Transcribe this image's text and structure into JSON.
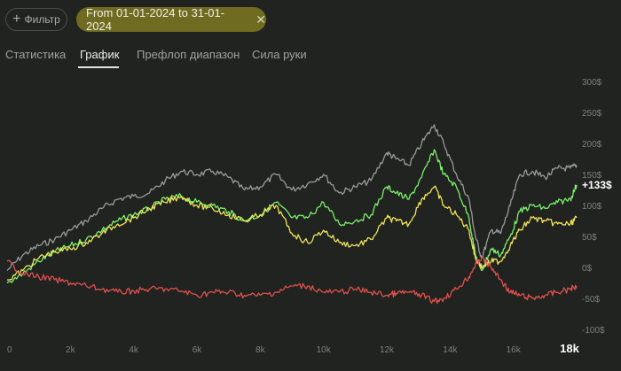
{
  "toolbar": {
    "filter_label": "Фильтр",
    "date_range_label": "From 01-01-2024 to 31-01-2024"
  },
  "tabs": [
    {
      "label": "Статистика",
      "active": false
    },
    {
      "label": "График",
      "active": true
    },
    {
      "label": "Префлоп диапазон",
      "active": false
    },
    {
      "label": "Сила руки",
      "active": false
    }
  ],
  "colors": {
    "background": "#202320",
    "chip": "#6f6b21",
    "gray_series": "#9a9a9a",
    "green_series": "#7cf06a",
    "yellow_series": "#f0e35a",
    "red_series": "#e0504c"
  },
  "chart_data": {
    "type": "line",
    "x_ticks": [
      "0",
      "2k",
      "4k",
      "6k",
      "8k",
      "10k",
      "12k",
      "14k",
      "16k",
      "18k"
    ],
    "x_tick_values": [
      0,
      2000,
      4000,
      6000,
      8000,
      10000,
      12000,
      14000,
      16000,
      18000
    ],
    "highlighted_x_tick": "18k",
    "y_ticks": [
      "300$",
      "250$",
      "200$",
      "150$",
      "100$",
      "50$",
      "0$",
      "-50$",
      "-100$"
    ],
    "y_tick_values": [
      300,
      250,
      200,
      150,
      100,
      50,
      0,
      -50,
      -100
    ],
    "ylim": [
      -100,
      300
    ],
    "xlim": [
      0,
      18000
    ],
    "grid": false,
    "end_label": "+133$",
    "series": [
      {
        "color": "#9a9a9a",
        "x": [
          0,
          500,
          1000,
          1500,
          2000,
          2500,
          3000,
          3500,
          4000,
          4500,
          5000,
          5500,
          6000,
          6500,
          7000,
          7500,
          8000,
          8500,
          9000,
          9500,
          10000,
          10500,
          11000,
          11500,
          12000,
          12300,
          12700,
          13100,
          13500,
          13800,
          14200,
          14600,
          14800,
          15000,
          15300,
          15600,
          15900,
          16200,
          16600,
          17000,
          17400,
          17800,
          18000
        ],
        "y": [
          -5,
          20,
          35,
          45,
          60,
          75,
          95,
          110,
          115,
          120,
          140,
          155,
          150,
          155,
          145,
          125,
          130,
          150,
          125,
          135,
          150,
          120,
          130,
          140,
          185,
          175,
          165,
          200,
          230,
          200,
          150,
          110,
          50,
          15,
          60,
          55,
          100,
          150,
          155,
          145,
          160,
          160,
          165
        ]
      },
      {
        "color": "#7cf06a",
        "x": [
          0,
          500,
          1000,
          1500,
          2000,
          2500,
          3000,
          3500,
          4000,
          4500,
          5000,
          5500,
          6000,
          6500,
          7000,
          7500,
          8000,
          8500,
          9000,
          9500,
          10000,
          10500,
          11000,
          11500,
          12000,
          12300,
          12700,
          13100,
          13500,
          13800,
          14200,
          14600,
          14800,
          15000,
          15300,
          15600,
          15900,
          16200,
          16600,
          17000,
          17400,
          17800,
          18000
        ],
        "y": [
          -25,
          -10,
          10,
          25,
          35,
          45,
          60,
          75,
          85,
          95,
          110,
          115,
          105,
          100,
          90,
          75,
          85,
          105,
          80,
          80,
          105,
          70,
          75,
          85,
          130,
          120,
          110,
          145,
          190,
          150,
          130,
          80,
          20,
          -5,
          30,
          20,
          50,
          90,
          100,
          95,
          105,
          110,
          133
        ]
      },
      {
        "color": "#f0e35a",
        "x": [
          0,
          500,
          1000,
          1500,
          2000,
          2500,
          3000,
          3500,
          4000,
          4500,
          5000,
          5500,
          6000,
          6500,
          7000,
          7500,
          8000,
          8500,
          9000,
          9500,
          10000,
          10500,
          11000,
          11500,
          12000,
          12300,
          12700,
          13100,
          13500,
          13800,
          14200,
          14600,
          14800,
          15000,
          15300,
          15600,
          15900,
          16200,
          16600,
          17000,
          17400,
          17800,
          18000
        ],
        "y": [
          -20,
          -5,
          15,
          25,
          30,
          40,
          55,
          70,
          80,
          95,
          105,
          115,
          100,
          95,
          85,
          75,
          85,
          100,
          55,
          40,
          60,
          40,
          35,
          45,
          80,
          75,
          70,
          110,
          130,
          100,
          85,
          60,
          15,
          0,
          10,
          10,
          35,
          60,
          80,
          75,
          70,
          70,
          80
        ]
      },
      {
        "color": "#e0504c",
        "x": [
          0,
          500,
          1000,
          1500,
          2000,
          2500,
          3000,
          3500,
          4000,
          4500,
          5000,
          5500,
          6000,
          6500,
          7000,
          7500,
          8000,
          8500,
          9000,
          9500,
          10000,
          10500,
          11000,
          11500,
          12000,
          12300,
          12700,
          13100,
          13500,
          13800,
          14200,
          14600,
          14800,
          15000,
          15300,
          15600,
          15900,
          16200,
          16600,
          17000,
          17400,
          17800,
          18000
        ],
        "y": [
          10,
          -10,
          -15,
          -20,
          -25,
          -30,
          -35,
          -40,
          -38,
          -35,
          -35,
          -38,
          -45,
          -40,
          -40,
          -45,
          -45,
          -40,
          -30,
          -30,
          -40,
          -40,
          -35,
          -40,
          -45,
          -42,
          -40,
          -45,
          -55,
          -50,
          -35,
          -15,
          5,
          15,
          0,
          -20,
          -40,
          -45,
          -50,
          -45,
          -40,
          -35,
          -30
        ]
      }
    ]
  }
}
